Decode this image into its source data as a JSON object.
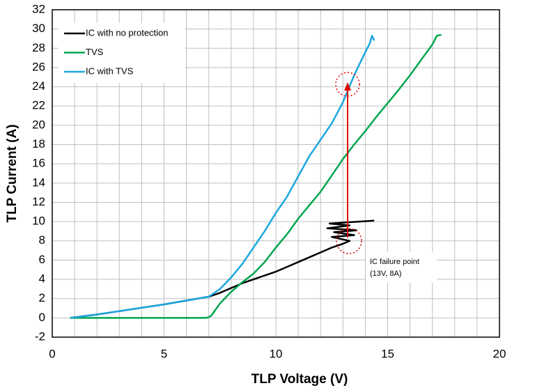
{
  "chart_data": {
    "type": "line",
    "xlabel": "TLP Voltage (V)",
    "ylabel": "TLP Current (A)",
    "xlim": [
      0,
      20
    ],
    "ylim": [
      -2,
      32
    ],
    "xticks": [
      0,
      5,
      10,
      15,
      20
    ],
    "xminor": [
      1,
      2,
      3,
      4,
      6,
      7,
      8,
      9,
      11,
      12,
      13,
      14,
      16,
      17,
      18,
      19
    ],
    "yticks": [
      -2,
      0,
      2,
      4,
      6,
      8,
      10,
      12,
      14,
      16,
      18,
      20,
      22,
      24,
      26,
      28,
      30,
      32
    ],
    "grid": true,
    "legend": "upper left",
    "annotations": [
      "IC failure point",
      "(13V, 8A)"
    ],
    "series": [
      {
        "name": "IC with no protection",
        "color": "#000000",
        "x": [
          0.8,
          2,
          3,
          4,
          5,
          6,
          7,
          7.5,
          8,
          8.5,
          9,
          9.5,
          10,
          10.5,
          11,
          11.5,
          12,
          12.5,
          13,
          13.3,
          12.5,
          13.5,
          12.6,
          13.6,
          12.3,
          13.3,
          12.4,
          14.4
        ],
        "values": [
          0,
          0.35,
          0.7,
          1.05,
          1.4,
          1.8,
          2.2,
          2.6,
          3.1,
          3.6,
          4.0,
          4.4,
          4.8,
          5.3,
          5.8,
          6.3,
          6.8,
          7.3,
          7.7,
          8.0,
          8.4,
          8.6,
          8.9,
          9.1,
          9.3,
          9.6,
          9.8,
          10.1
        ]
      },
      {
        "name": "TVS",
        "color": "#00a650",
        "x": [
          0.8,
          6.9,
          7.1,
          7.5,
          8,
          8.5,
          9,
          9.5,
          10,
          10.5,
          11,
          11.5,
          12,
          12.5,
          13,
          13.5,
          14,
          14.5,
          15,
          15.5,
          16,
          16.5,
          17,
          17.2,
          17.4
        ],
        "values": [
          0,
          0,
          0.2,
          1.5,
          2.7,
          3.7,
          4.6,
          5.8,
          7.3,
          8.7,
          10.3,
          11.7,
          13.1,
          14.8,
          16.5,
          18,
          19.4,
          20.9,
          22.3,
          23.7,
          25.2,
          26.8,
          28.4,
          29.3,
          29.4
        ]
      },
      {
        "name": "IC with TVS",
        "color": "#1aa7e0",
        "x": [
          0.8,
          2,
          3,
          4,
          5,
          6,
          7,
          7.5,
          8,
          8.5,
          9,
          9.5,
          10,
          10.5,
          11,
          11.5,
          12,
          12.5,
          13,
          13.5,
          14,
          14.2,
          14.3,
          14.4
        ],
        "values": [
          0,
          0.35,
          0.7,
          1.05,
          1.4,
          1.8,
          2.2,
          3.0,
          4.2,
          5.6,
          7.3,
          9.0,
          10.9,
          12.6,
          14.7,
          16.8,
          18.5,
          20.2,
          22.4,
          25.2,
          27.6,
          28.5,
          29.3,
          28.8
        ]
      }
    ]
  }
}
